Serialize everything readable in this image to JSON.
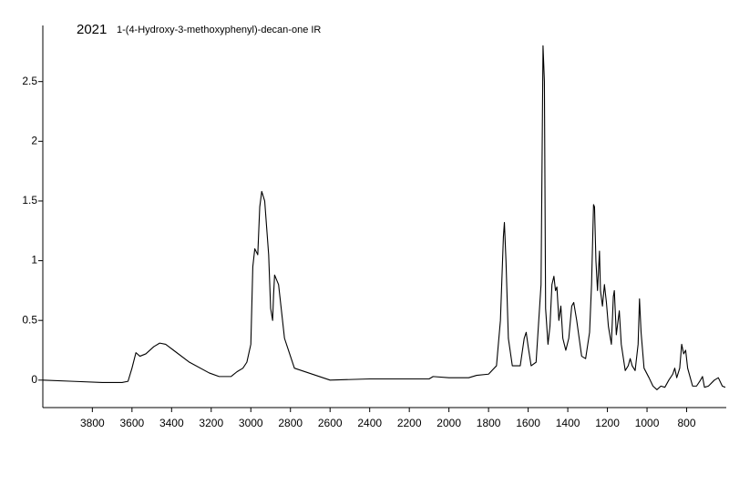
{
  "chart_data": {
    "type": "line",
    "title": "2021",
    "subtitle": "1-(4-Hydroxy-3-methoxyphenyl)-decan-one IR",
    "color": "#000000",
    "xlim": [
      4050,
      600
    ],
    "ylim": [
      -0.23,
      2.97
    ],
    "xticks": [
      3800,
      3600,
      3400,
      3200,
      3000,
      2800,
      2600,
      2400,
      2200,
      2000,
      1800,
      1600,
      1400,
      1200,
      1000,
      800
    ],
    "yticks": [
      0,
      0.5,
      1,
      1.5,
      2,
      2.5
    ],
    "x": [
      4050,
      3900,
      3750,
      3650,
      3620,
      3600,
      3580,
      3560,
      3530,
      3490,
      3460,
      3430,
      3390,
      3310,
      3210,
      3160,
      3130,
      3100,
      3070,
      3040,
      3020,
      3000,
      2990,
      2980,
      2965,
      2955,
      2945,
      2930,
      2910,
      2900,
      2890,
      2885,
      2880,
      2860,
      2830,
      2780,
      2600,
      2400,
      2200,
      2100,
      2080,
      2000,
      1900,
      1860,
      1800,
      1760,
      1740,
      1725,
      1720,
      1712,
      1700,
      1680,
      1640,
      1620,
      1610,
      1600,
      1585,
      1560,
      1535,
      1525,
      1518,
      1512,
      1500,
      1490,
      1480,
      1470,
      1462,
      1455,
      1445,
      1435,
      1425,
      1410,
      1395,
      1380,
      1370,
      1355,
      1330,
      1310,
      1290,
      1280,
      1270,
      1265,
      1258,
      1250,
      1240,
      1235,
      1225,
      1215,
      1205,
      1195,
      1180,
      1170,
      1165,
      1155,
      1140,
      1130,
      1110,
      1095,
      1085,
      1075,
      1060,
      1045,
      1038,
      1030,
      1015,
      990,
      970,
      950,
      930,
      910,
      890,
      870,
      860,
      850,
      835,
      825,
      815,
      805,
      795,
      770,
      750,
      730,
      720,
      710,
      690,
      660,
      640,
      620,
      605
    ],
    "values": [
      0.0,
      -0.01,
      -0.02,
      -0.02,
      -0.01,
      0.1,
      0.23,
      0.2,
      0.22,
      0.28,
      0.31,
      0.3,
      0.25,
      0.15,
      0.06,
      0.03,
      0.03,
      0.03,
      0.07,
      0.1,
      0.15,
      0.3,
      0.95,
      1.1,
      1.05,
      1.45,
      1.58,
      1.5,
      1.05,
      0.6,
      0.5,
      0.72,
      0.88,
      0.8,
      0.35,
      0.1,
      0.0,
      0.01,
      0.01,
      0.01,
      0.03,
      0.02,
      0.02,
      0.04,
      0.05,
      0.12,
      0.5,
      1.2,
      1.32,
      1.0,
      0.35,
      0.12,
      0.12,
      0.35,
      0.4,
      0.28,
      0.12,
      0.15,
      0.8,
      2.8,
      2.5,
      0.6,
      0.3,
      0.45,
      0.8,
      0.87,
      0.75,
      0.78,
      0.5,
      0.62,
      0.35,
      0.25,
      0.35,
      0.62,
      0.65,
      0.5,
      0.2,
      0.18,
      0.4,
      0.8,
      1.47,
      1.45,
      1.0,
      0.75,
      1.08,
      0.75,
      0.62,
      0.8,
      0.65,
      0.45,
      0.3,
      0.7,
      0.75,
      0.38,
      0.58,
      0.3,
      0.08,
      0.12,
      0.18,
      0.12,
      0.08,
      0.3,
      0.68,
      0.4,
      0.1,
      0.02,
      -0.05,
      -0.08,
      -0.05,
      -0.06,
      0.0,
      0.05,
      0.1,
      0.02,
      0.1,
      0.3,
      0.22,
      0.25,
      0.1,
      -0.05,
      -0.05,
      0.0,
      0.03,
      -0.06,
      -0.05,
      0.0,
      0.02,
      -0.05,
      -0.06
    ]
  }
}
